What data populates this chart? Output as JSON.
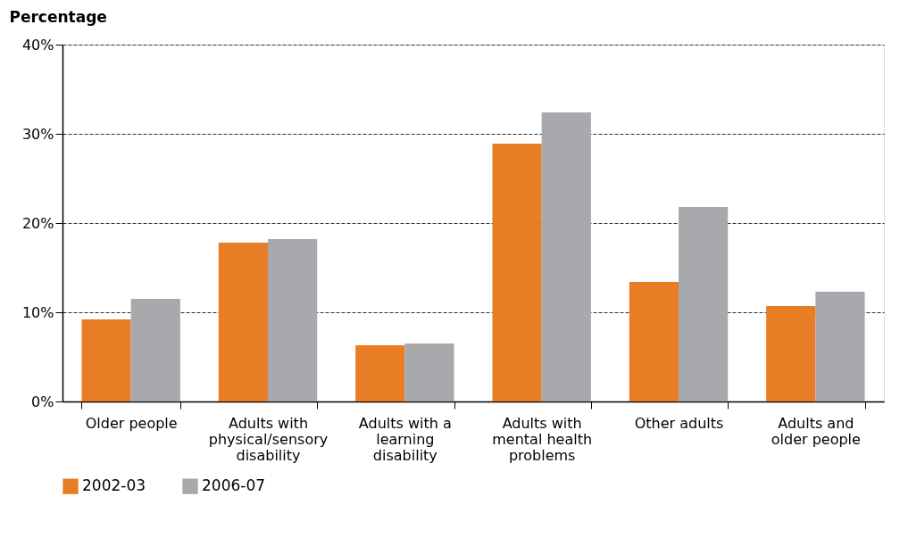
{
  "chart_data": {
    "type": "bar",
    "ylabel": "Percentage",
    "categories": [
      "Older people",
      "Adults with physical/sensory disability",
      "Adults with a learning disability",
      "Adults with mental health problems",
      "Other adults",
      "Adults and older people"
    ],
    "series": [
      {
        "name": "2002-03",
        "color": "#e87d26",
        "values": [
          9.2,
          17.8,
          6.3,
          28.9,
          13.4,
          10.7
        ]
      },
      {
        "name": "2006-07",
        "color": "#a8a9ad",
        "values": [
          11.5,
          18.2,
          6.5,
          32.4,
          21.8,
          12.3
        ]
      }
    ],
    "ylim": [
      0,
      40
    ],
    "yticks": [
      {
        "value": 0,
        "label": "0%"
      },
      {
        "value": 10,
        "label": "10%"
      },
      {
        "value": 20,
        "label": "20%"
      },
      {
        "value": 30,
        "label": "30%"
      },
      {
        "value": 40,
        "label": "40%"
      }
    ],
    "grid": "y",
    "legend": "bottom left"
  }
}
